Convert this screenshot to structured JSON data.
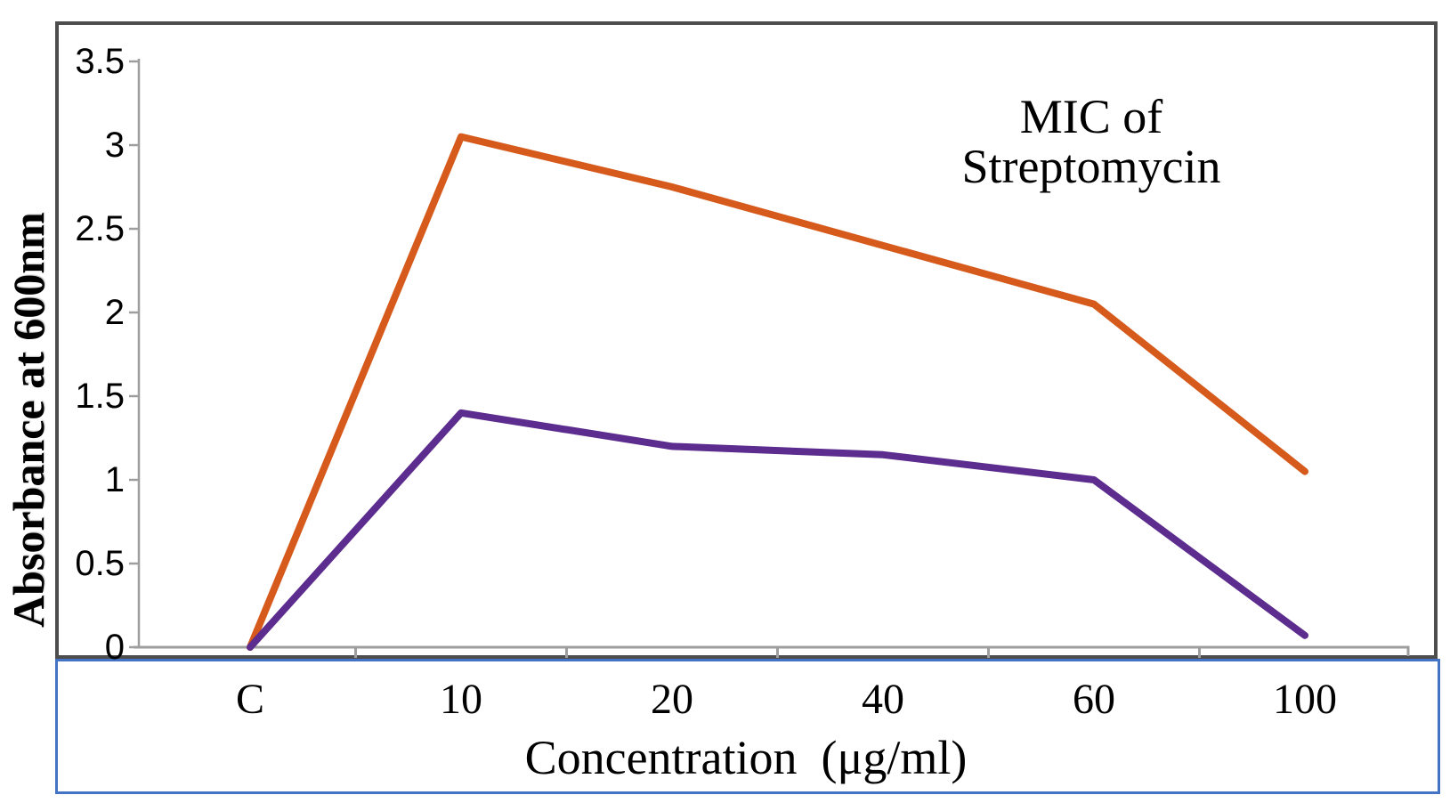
{
  "chart_data": {
    "type": "line",
    "title": "MIC of Streptomycin",
    "xlabel": "Concentration  (μg/ml)",
    "ylabel": "Absorbance at 600nm",
    "categories": [
      "C",
      "10",
      "20",
      "40",
      "60",
      "100"
    ],
    "series": [
      {
        "name": "upper-orange-series",
        "color": "#D65A1C",
        "values": [
          0,
          3.05,
          2.75,
          2.4,
          2.05,
          1.05
        ]
      },
      {
        "name": "lower-purple-series",
        "color": "#5C2C8E",
        "values": [
          0,
          1.4,
          1.2,
          1.15,
          1.0,
          0.07
        ]
      }
    ],
    "ylim": [
      0,
      3.5
    ],
    "ytick_step": 0.5,
    "ytick_labels": [
      "0",
      "0.5",
      "1",
      "1.5",
      "2",
      "2.5",
      "3",
      "3.5"
    ],
    "grid": false,
    "legend": "none",
    "styles": {
      "frame_color": "#4D4D4D",
      "axis_color": "#9E9E9E",
      "xaxis_band_border": "#4472C4",
      "text_color": "#000000",
      "background": "#FFFFFF"
    }
  }
}
